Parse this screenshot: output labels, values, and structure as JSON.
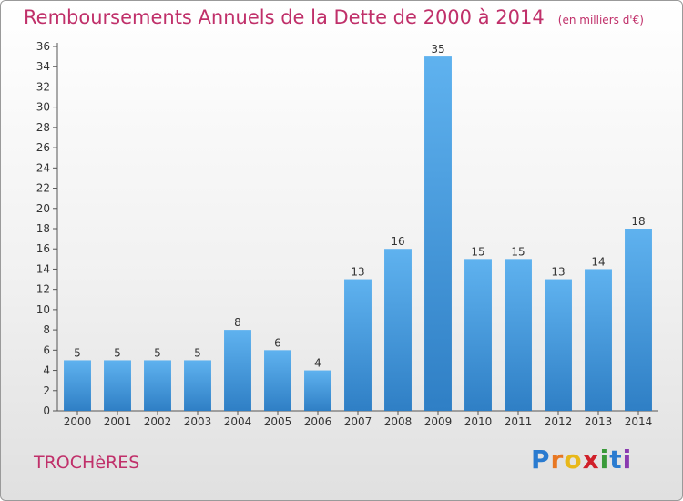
{
  "title": "Remboursements Annuels de la Dette de 2000 à 2014",
  "unit_note": "(en milliers d'€)",
  "commune": "TROCHèRES",
  "logo": {
    "letters": [
      "P",
      "r",
      "o",
      "x",
      "i",
      "t",
      "i"
    ],
    "colors": [
      "#2a7bd0",
      "#e87722",
      "#e8b81a",
      "#d0202a",
      "#3a9a3a",
      "#2a7bd0",
      "#8a3ab0"
    ]
  },
  "colors": {
    "title": "#c0306a",
    "bar_light": "#5fb2ef",
    "bar_dark": "#2f7fc5",
    "axis": "#555555",
    "grid": "#d9d9d9",
    "text": "#333333"
  },
  "chart_data": {
    "type": "bar",
    "categories": [
      "2000",
      "2001",
      "2002",
      "2003",
      "2004",
      "2005",
      "2006",
      "2007",
      "2008",
      "2009",
      "2010",
      "2011",
      "2012",
      "2013",
      "2014"
    ],
    "values": [
      5,
      5,
      5,
      5,
      8,
      6,
      4,
      13,
      16,
      35,
      15,
      15,
      13,
      14,
      18
    ],
    "data_labels": [
      "5",
      "5",
      "5",
      "5",
      "8",
      "6",
      "4",
      "13",
      "16",
      "35",
      "15",
      "15",
      "13",
      "14",
      "18"
    ],
    "ylim": [
      0,
      36
    ],
    "yticks": [
      0,
      2,
      4,
      6,
      8,
      10,
      12,
      14,
      16,
      18,
      20,
      22,
      24,
      26,
      28,
      30,
      32,
      34,
      36
    ],
    "grid": false,
    "legend": "none"
  }
}
